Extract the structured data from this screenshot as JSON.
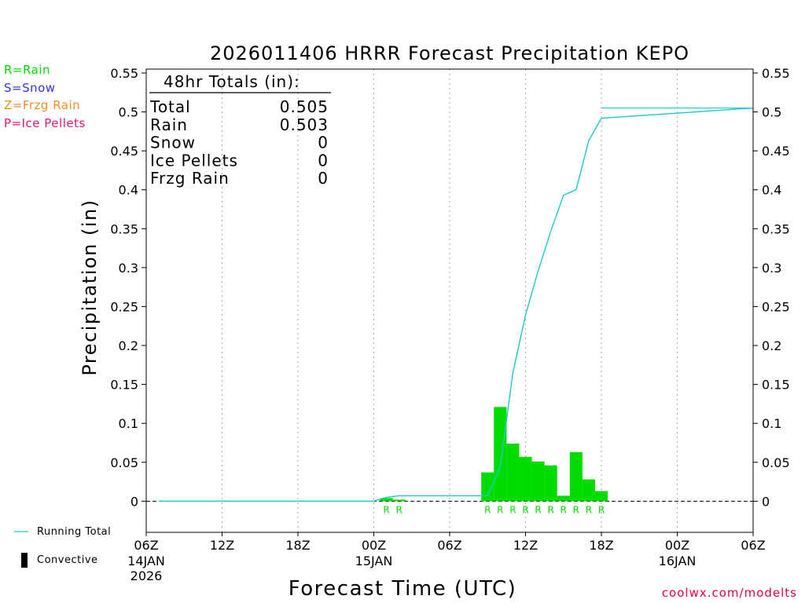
{
  "chart_data": {
    "type": "bar",
    "title": "2026011406 HRRR Forecast Precipitation KEPO",
    "xlabel": "Forecast Time (UTC)",
    "ylabel": "Precipitation (in)",
    "ylim": [
      -0.04,
      0.555
    ],
    "yticks": [
      0,
      0.05,
      0.1,
      0.15,
      0.2,
      0.25,
      0.3,
      0.35,
      0.4,
      0.45,
      0.5,
      0.55
    ],
    "ytick_labels": [
      "0",
      "0.05",
      "0.1",
      "0.15",
      "0.2",
      "0.25",
      "0.3",
      "0.35",
      "0.4",
      "0.45",
      "0.5",
      "0.55"
    ],
    "xlim_hours": [
      0,
      48
    ],
    "xticks": [
      {
        "hour": 0,
        "label": "06Z",
        "sub1": "14JAN",
        "sub2": "2026"
      },
      {
        "hour": 6,
        "label": "12Z",
        "sub1": "",
        "sub2": ""
      },
      {
        "hour": 12,
        "label": "18Z",
        "sub1": "",
        "sub2": ""
      },
      {
        "hour": 18,
        "label": "00Z",
        "sub1": "15JAN",
        "sub2": ""
      },
      {
        "hour": 24,
        "label": "06Z",
        "sub1": "",
        "sub2": ""
      },
      {
        "hour": 30,
        "label": "12Z",
        "sub1": "",
        "sub2": ""
      },
      {
        "hour": 36,
        "label": "18Z",
        "sub1": "",
        "sub2": ""
      },
      {
        "hour": 42,
        "label": "00Z",
        "sub1": "16JAN",
        "sub2": ""
      },
      {
        "hour": 48,
        "label": "06Z",
        "sub1": "",
        "sub2": ""
      }
    ],
    "bars": [
      {
        "hour": 19,
        "value": 0.004,
        "ptype": "R"
      },
      {
        "hour": 20,
        "value": 0.002,
        "ptype": "R"
      },
      {
        "hour": 27,
        "value": 0.037,
        "ptype": "R"
      },
      {
        "hour": 28,
        "value": 0.121,
        "ptype": "R"
      },
      {
        "hour": 29,
        "value": 0.074,
        "ptype": "R"
      },
      {
        "hour": 30,
        "value": 0.057,
        "ptype": "R"
      },
      {
        "hour": 31,
        "value": 0.051,
        "ptype": "R"
      },
      {
        "hour": 32,
        "value": 0.046,
        "ptype": "R"
      },
      {
        "hour": 33,
        "value": 0.007,
        "ptype": "R"
      },
      {
        "hour": 34,
        "value": 0.063,
        "ptype": "R"
      },
      {
        "hour": 35,
        "value": 0.028,
        "ptype": "R"
      },
      {
        "hour": 36,
        "value": 0.013,
        "ptype": "R"
      }
    ],
    "running_total": {
      "name": "Running Total",
      "x": [
        1,
        18,
        19,
        20,
        27,
        28,
        29,
        30,
        31,
        32,
        33,
        34,
        35,
        36,
        48
      ],
      "y": [
        0.0,
        0.0,
        0.005,
        0.007,
        0.007,
        0.044,
        0.165,
        0.239,
        0.296,
        0.347,
        0.393,
        0.4,
        0.463,
        0.492,
        0.505
      ]
    },
    "running_total_end": {
      "x": 48,
      "y": 0.505
    },
    "totals_box": {
      "header": "48hr Totals (in):",
      "rows": [
        {
          "label": "Total",
          "value": "0.505"
        },
        {
          "label": "Rain",
          "value": "0.503"
        },
        {
          "label": "Snow",
          "value": "0"
        },
        {
          "label": "Ice Pellets",
          "value": "0"
        },
        {
          "label": "Frzg Rain",
          "value": "0"
        }
      ]
    },
    "colors": {
      "bar": "#00dc00",
      "running_total": "#1ec8c8",
      "rain_label": "#00dc00",
      "grid": "#aaaaaa"
    }
  },
  "legend": {
    "items": [
      {
        "text": "R=Rain",
        "color": "#00dc00"
      },
      {
        "text": "S=Snow",
        "color": "#3232ff"
      },
      {
        "text": "Z=Frzg Rain",
        "color": "#f08c28"
      },
      {
        "text": "P=Ice Pellets",
        "color": "#e6147a"
      }
    ]
  },
  "footer": {
    "running_total_label": "Running Total",
    "convective_label": "Convective",
    "credit": "coolwx.com/modelts"
  }
}
